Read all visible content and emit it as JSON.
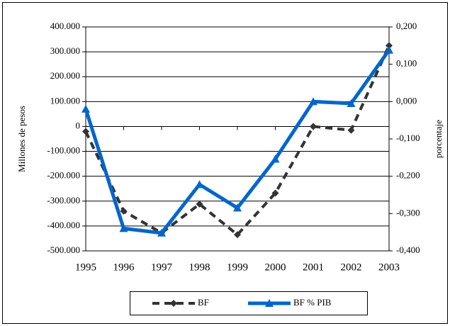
{
  "chart_data": {
    "type": "line",
    "categories": [
      "1995",
      "1996",
      "1997",
      "1998",
      "1999",
      "2000",
      "2001",
      "2002",
      "2003"
    ],
    "y_label": "Millones de pesos",
    "y2_label": "porcentaje",
    "ylim": [
      -500000,
      400000
    ],
    "yticks": [
      {
        "value": -500000,
        "label": "-500.000"
      },
      {
        "value": -400000,
        "label": "-400.000"
      },
      {
        "value": -300000,
        "label": "-300.000"
      },
      {
        "value": -200000,
        "label": "-200.000"
      },
      {
        "value": -100000,
        "label": "-100.000"
      },
      0,
      {
        "value": 100000,
        "label": "100.000"
      },
      {
        "value": 200000,
        "label": "200.000"
      },
      {
        "value": 300000,
        "label": "300.000"
      },
      {
        "value": 400000,
        "label": "400.000"
      }
    ],
    "y2lim": [
      -0.4,
      0.2
    ],
    "y2ticks": [
      {
        "value": -0.4,
        "label": "-0,400"
      },
      {
        "value": -0.3,
        "label": "-0,300"
      },
      {
        "value": -0.2,
        "label": "-0,200"
      },
      {
        "value": -0.1,
        "label": "-0,100"
      },
      {
        "value": 0,
        "label": "0,000"
      },
      {
        "value": 0.1,
        "label": "0,100"
      },
      {
        "value": 0.2,
        "label": "0,200"
      }
    ],
    "grid": true,
    "series": [
      {
        "name": "BF",
        "color": "#333333",
        "dash": true,
        "marker": "diamond",
        "values": [
          -20000,
          -340000,
          -428000,
          -312000,
          -435000,
          -268000,
          0,
          -15000,
          325000
        ]
      },
      {
        "name": "BF % PIB",
        "color": "#0066cc",
        "dash": false,
        "marker": "triangle",
        "axis": "y2",
        "values": [
          -0.02,
          -0.34,
          -0.352,
          -0.222,
          -0.285,
          -0.154,
          0.0,
          -0.005,
          0.138
        ]
      }
    ]
  }
}
